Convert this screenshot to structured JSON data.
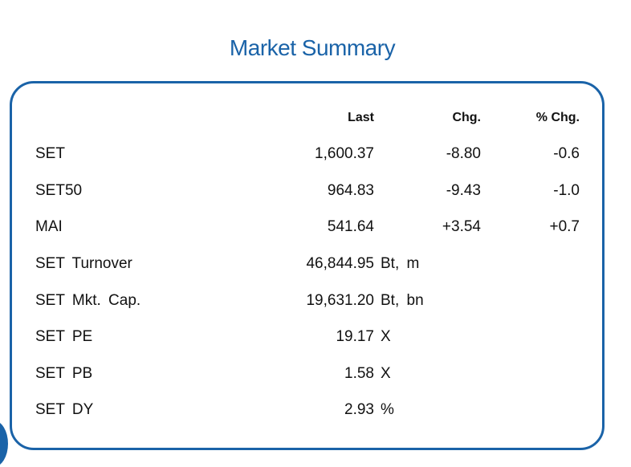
{
  "title": "Market Summary",
  "colors": {
    "accent": "#1a63a8",
    "text": "#111111",
    "background": "#ffffff"
  },
  "columns": {
    "last": "Last",
    "chg": "Chg.",
    "pct": "% Chg."
  },
  "rows": [
    {
      "label": "SET",
      "last": "1,600.37",
      "chg": "-8.80",
      "pct": "-0.6",
      "unit": ""
    },
    {
      "label": "SET50",
      "last": "964.83",
      "chg": "-9.43",
      "pct": "-1.0",
      "unit": ""
    },
    {
      "label": "MAI",
      "last": "541.64",
      "chg": "+3.54",
      "pct": "+0.7",
      "unit": ""
    },
    {
      "label": "SET Turnover",
      "last": "46,844.95",
      "chg": "",
      "pct": "",
      "unit": "Bt, m"
    },
    {
      "label": "SET Mkt. Cap.",
      "last": "19,631.20",
      "chg": "",
      "pct": "",
      "unit": "Bt, bn"
    },
    {
      "label": "SET PE",
      "last": "19.17",
      "chg": "",
      "pct": "",
      "unit": "X"
    },
    {
      "label": "SET PB",
      "last": "1.58",
      "chg": "",
      "pct": "",
      "unit": "X"
    },
    {
      "label": "SET DY",
      "last": "2.93",
      "chg": "",
      "pct": "",
      "unit": "%"
    }
  ]
}
